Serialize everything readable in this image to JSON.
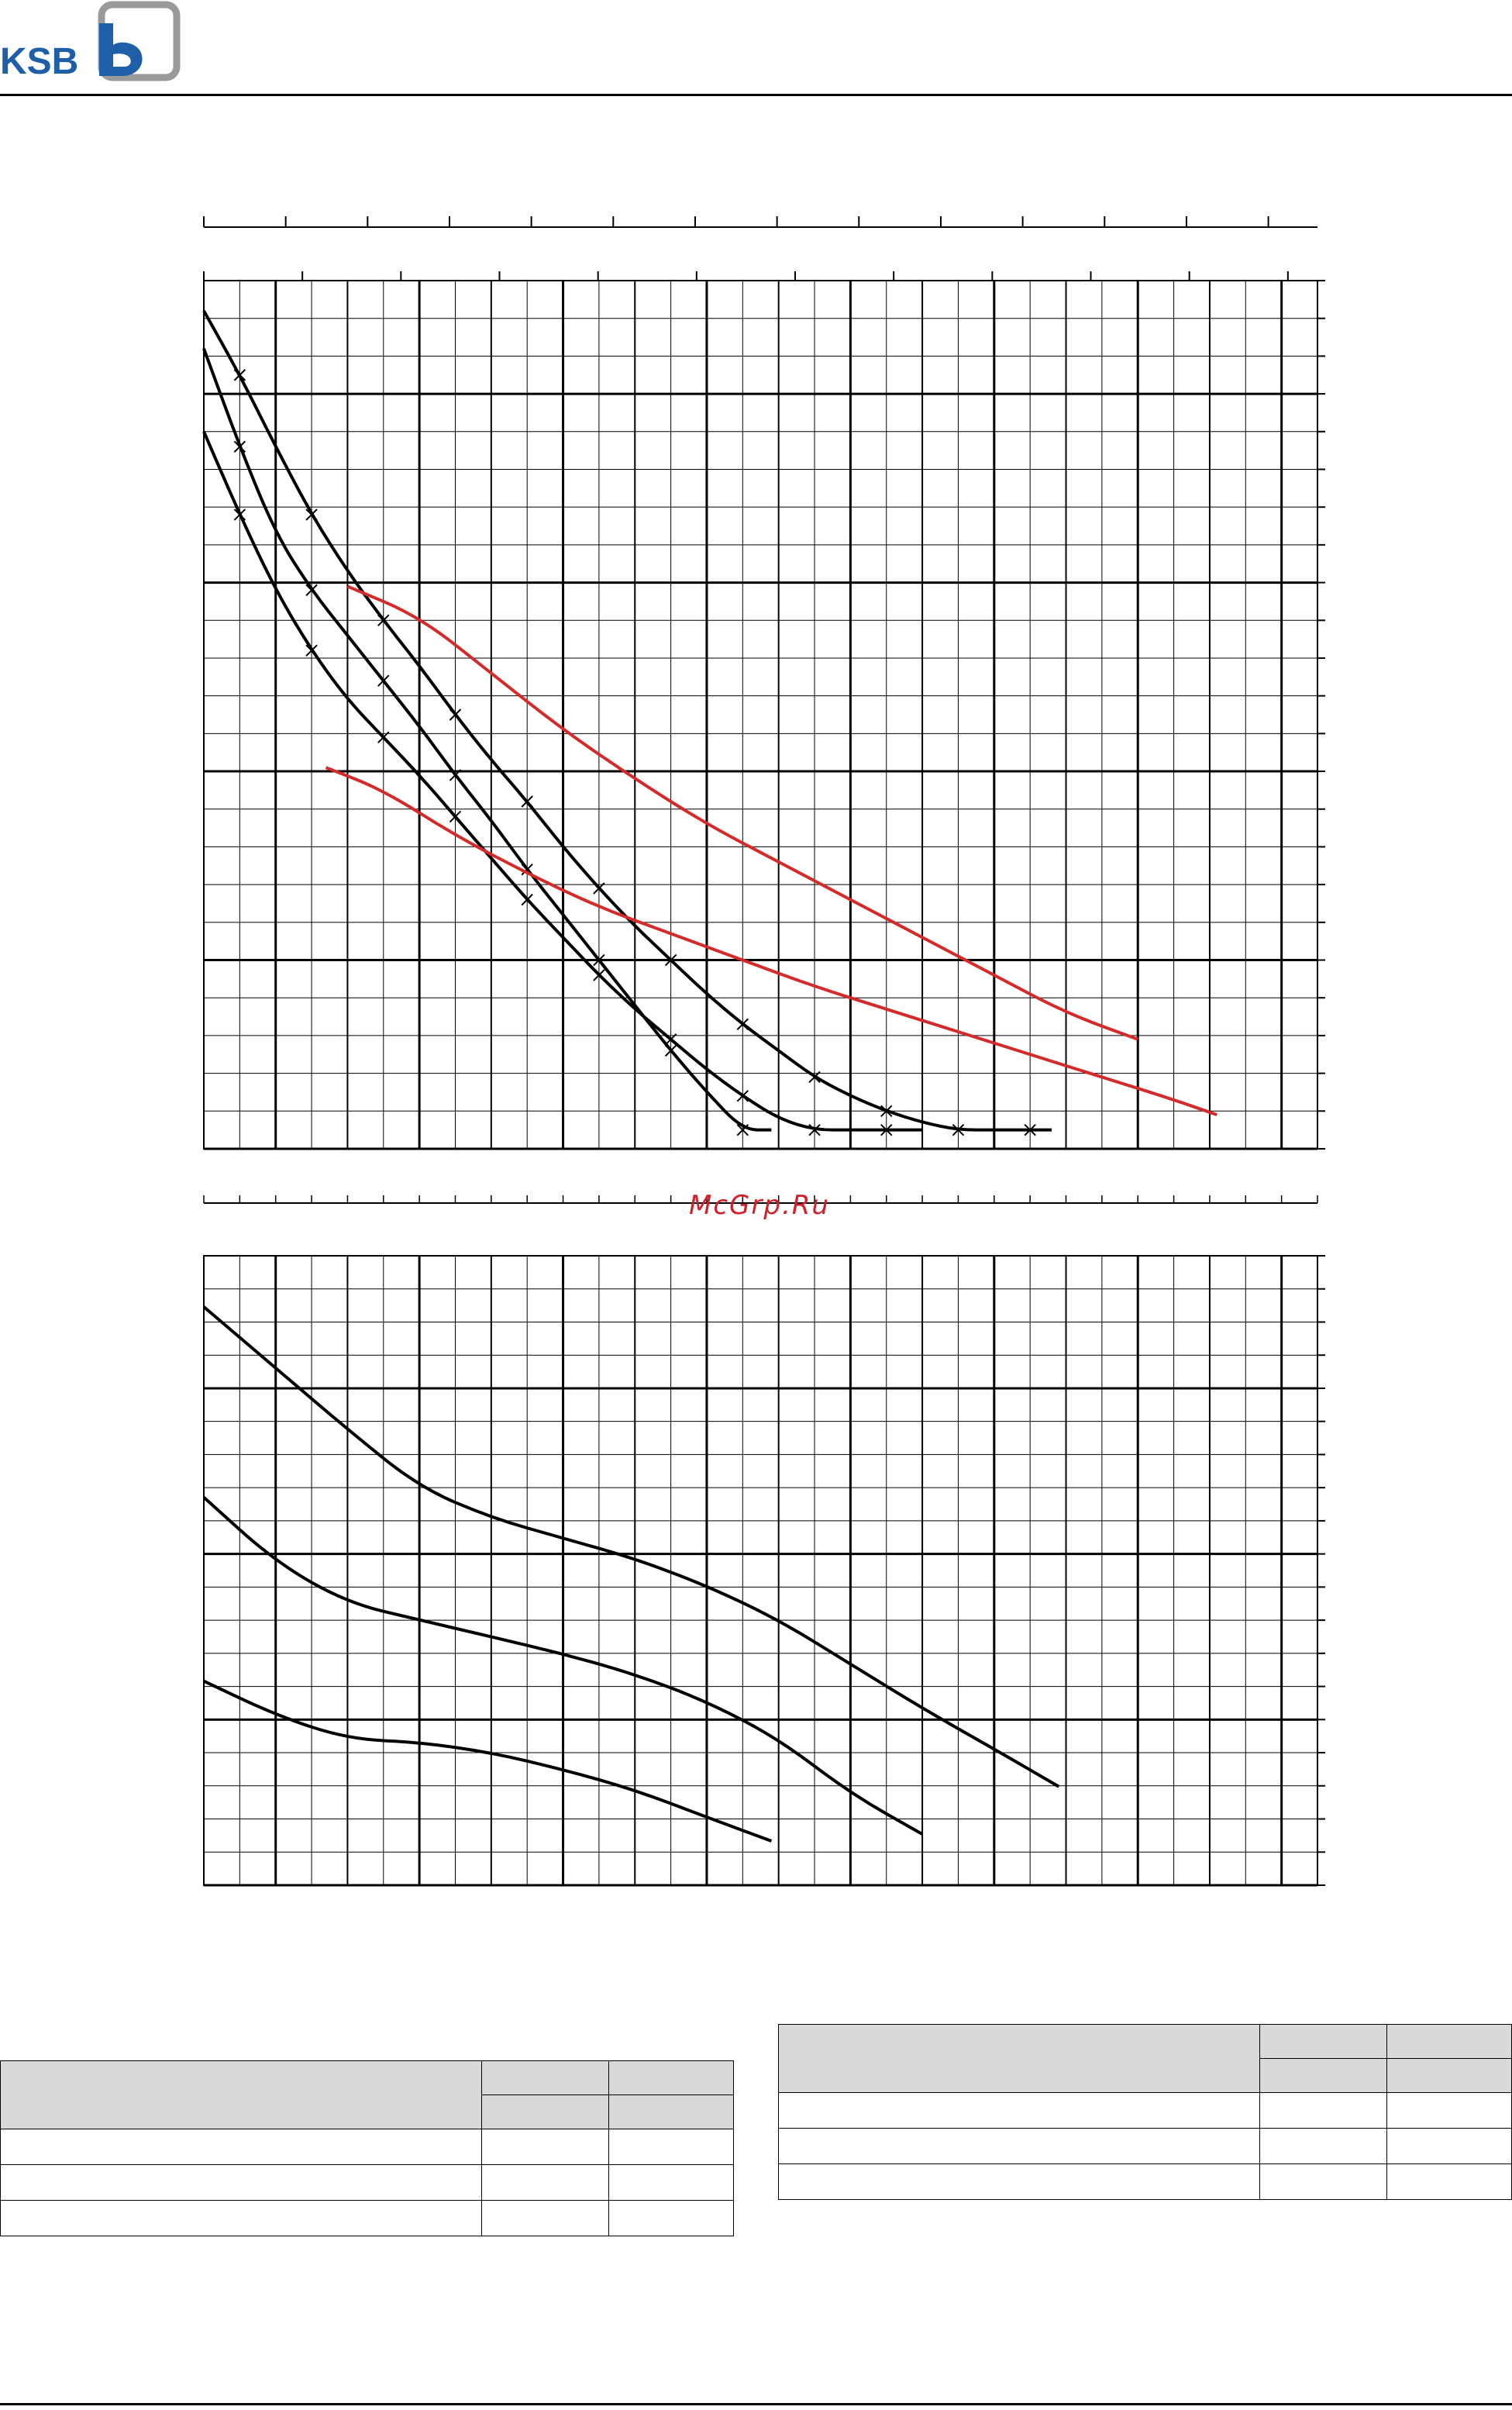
{
  "brand": {
    "name": "KSB",
    "color": "#1f5fa8",
    "mark_color": "#9a9a9a"
  },
  "watermark": {
    "text": "McGrp.Ru",
    "color": "#d0202a"
  },
  "chart_data": [
    {
      "type": "line",
      "title": "",
      "xlabel": "",
      "ylabel": "",
      "xlim": [
        0,
        15.5
      ],
      "ylim": [
        0,
        23
      ],
      "grid": true,
      "series": [
        {
          "color": "#000000",
          "markers": "x",
          "x": [
            0,
            0.5,
            1,
            1.5,
            2,
            2.5,
            3,
            3.5,
            4,
            4.5,
            5,
            5.5,
            6,
            6.5,
            7,
            7.5,
            7.9
          ],
          "y": [
            21.2,
            18.6,
            16.3,
            14.8,
            13.6,
            12.4,
            11.2,
            9.9,
            8.7,
            7.4,
            6.2,
            5.0,
            3.8,
            2.6,
            1.5,
            0.5,
            0.5
          ]
        },
        {
          "color": "#000000",
          "markers": "x",
          "x": [
            0,
            0.5,
            1,
            1.5,
            2,
            2.5,
            3,
            3.5,
            4,
            4.5,
            5,
            5.5,
            6,
            6.5,
            7,
            7.5,
            8,
            8.5,
            9,
            9.5,
            10
          ],
          "y": [
            19.0,
            16.8,
            14.8,
            13.2,
            11.9,
            10.9,
            9.9,
            8.8,
            7.7,
            6.6,
            5.6,
            4.6,
            3.7,
            2.9,
            2.1,
            1.4,
            0.8,
            0.5,
            0.5,
            0.5,
            0.5
          ]
        },
        {
          "color": "#000000",
          "markers": "x",
          "x": [
            0,
            0.5,
            1,
            1.5,
            2,
            2.5,
            3,
            3.5,
            4,
            4.5,
            5,
            5.5,
            6,
            6.5,
            7,
            7.5,
            8,
            8.5,
            9,
            9.5,
            10,
            10.5,
            11,
            11.5,
            11.8
          ],
          "y": [
            22.2,
            20.5,
            18.6,
            16.8,
            15.3,
            14.0,
            12.8,
            11.5,
            10.3,
            9.2,
            8.0,
            6.9,
            5.9,
            5.0,
            4.1,
            3.3,
            2.6,
            1.9,
            1.4,
            1.0,
            0.7,
            0.5,
            0.5,
            0.5,
            0.5
          ]
        },
        {
          "color": "#d42a2a",
          "markers": "none",
          "x": [
            2,
            3,
            4,
            5,
            6,
            7,
            8,
            9,
            10,
            11,
            12,
            13
          ],
          "y": [
            14.9,
            14.1,
            12.6,
            11.1,
            9.8,
            8.6,
            7.6,
            6.6,
            5.6,
            4.6,
            3.6,
            2.9
          ]
        },
        {
          "color": "#d42a2a",
          "markers": "none",
          "x": [
            1.7,
            2.5,
            3.5,
            4.5,
            5.5,
            6.5,
            7.5,
            8.5,
            9.5,
            10.5,
            11.5,
            12.5,
            13.5,
            14.1
          ],
          "y": [
            10.1,
            9.5,
            8.3,
            7.3,
            6.4,
            5.7,
            5.0,
            4.3,
            3.7,
            3.1,
            2.5,
            1.9,
            1.3,
            0.9
          ]
        }
      ]
    },
    {
      "type": "line",
      "title": "",
      "xlabel": "",
      "ylabel": "",
      "xlim": [
        0,
        15.5
      ],
      "ylim": [
        0,
        18.5
      ],
      "grid": true,
      "series": [
        {
          "color": "#000000",
          "x": [
            0,
            1,
            2,
            3,
            4,
            5,
            6,
            7,
            7.9
          ],
          "y": [
            6.0,
            5.0,
            4.3,
            4.2,
            3.9,
            3.4,
            2.8,
            2.0,
            1.3
          ]
        },
        {
          "color": "#000000",
          "x": [
            0,
            1,
            2,
            3,
            4,
            5,
            6,
            7,
            8,
            9,
            10
          ],
          "y": [
            11.4,
            9.5,
            8.3,
            7.8,
            7.3,
            6.8,
            6.2,
            5.4,
            4.3,
            2.7,
            1.5
          ]
        },
        {
          "color": "#000000",
          "x": [
            0,
            1,
            2,
            3,
            4,
            5,
            6,
            7,
            8,
            9,
            10,
            11,
            11.9
          ],
          "y": [
            17.0,
            15.2,
            13.4,
            11.7,
            10.8,
            10.2,
            9.6,
            8.8,
            7.8,
            6.5,
            5.2,
            4.0,
            2.9
          ]
        }
      ]
    }
  ],
  "table_left": {
    "rows": 5,
    "cols": 3
  },
  "table_right": {
    "rows": 5,
    "cols": 3
  }
}
